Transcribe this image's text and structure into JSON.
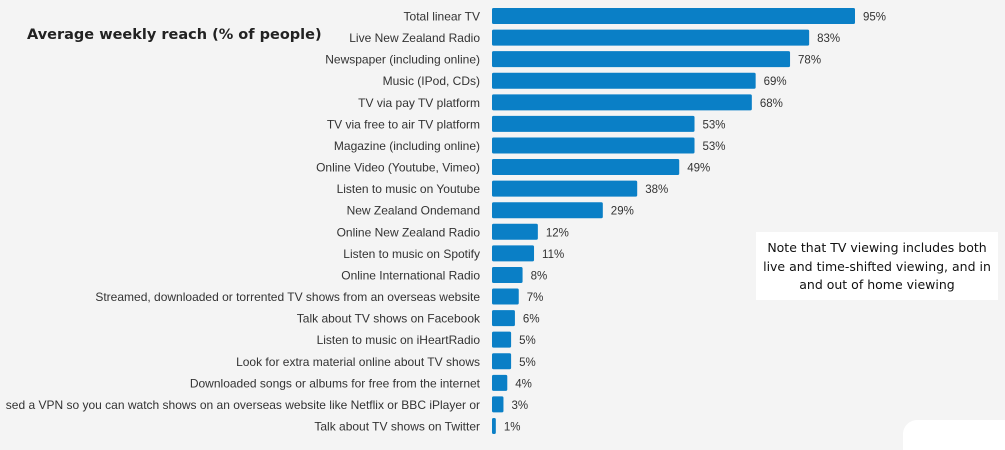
{
  "chart_data": {
    "type": "bar",
    "orientation": "horizontal",
    "title": "Average weekly reach (% of people)",
    "categories": [
      "Total linear TV",
      "Live New Zealand Radio",
      "Newspaper (including online)",
      "Music (IPod, CDs)",
      "TV via pay TV platform",
      "TV via free to air TV platform",
      "Magazine (including online)",
      "Online Video (Youtube, Vimeo)",
      "Listen to music on Youtube",
      "New Zealand Ondemand",
      "Online New Zealand Radio",
      "Listen to music on Spotify",
      "Online International Radio",
      "Streamed, downloaded or torrented TV shows from an overseas website",
      "Talk about TV shows on Facebook",
      "Listen to music on iHeartRadio",
      "Look for extra material online about TV shows",
      "Downloaded songs or albums for free from the internet",
      "sed a VPN so you can watch shows on an overseas website like Netflix or BBC iPlayer or",
      "Talk about TV shows on Twitter"
    ],
    "values": [
      95,
      83,
      78,
      69,
      68,
      53,
      53,
      49,
      38,
      29,
      12,
      11,
      8,
      7,
      6,
      5,
      5,
      4,
      3,
      1
    ],
    "value_suffix": "%",
    "xlim": [
      0,
      100
    ],
    "grid": false,
    "bar_color": "#0a7fc6"
  },
  "note": "Note that TV viewing includes both live and time-shifted viewing, and in and out of home viewing"
}
